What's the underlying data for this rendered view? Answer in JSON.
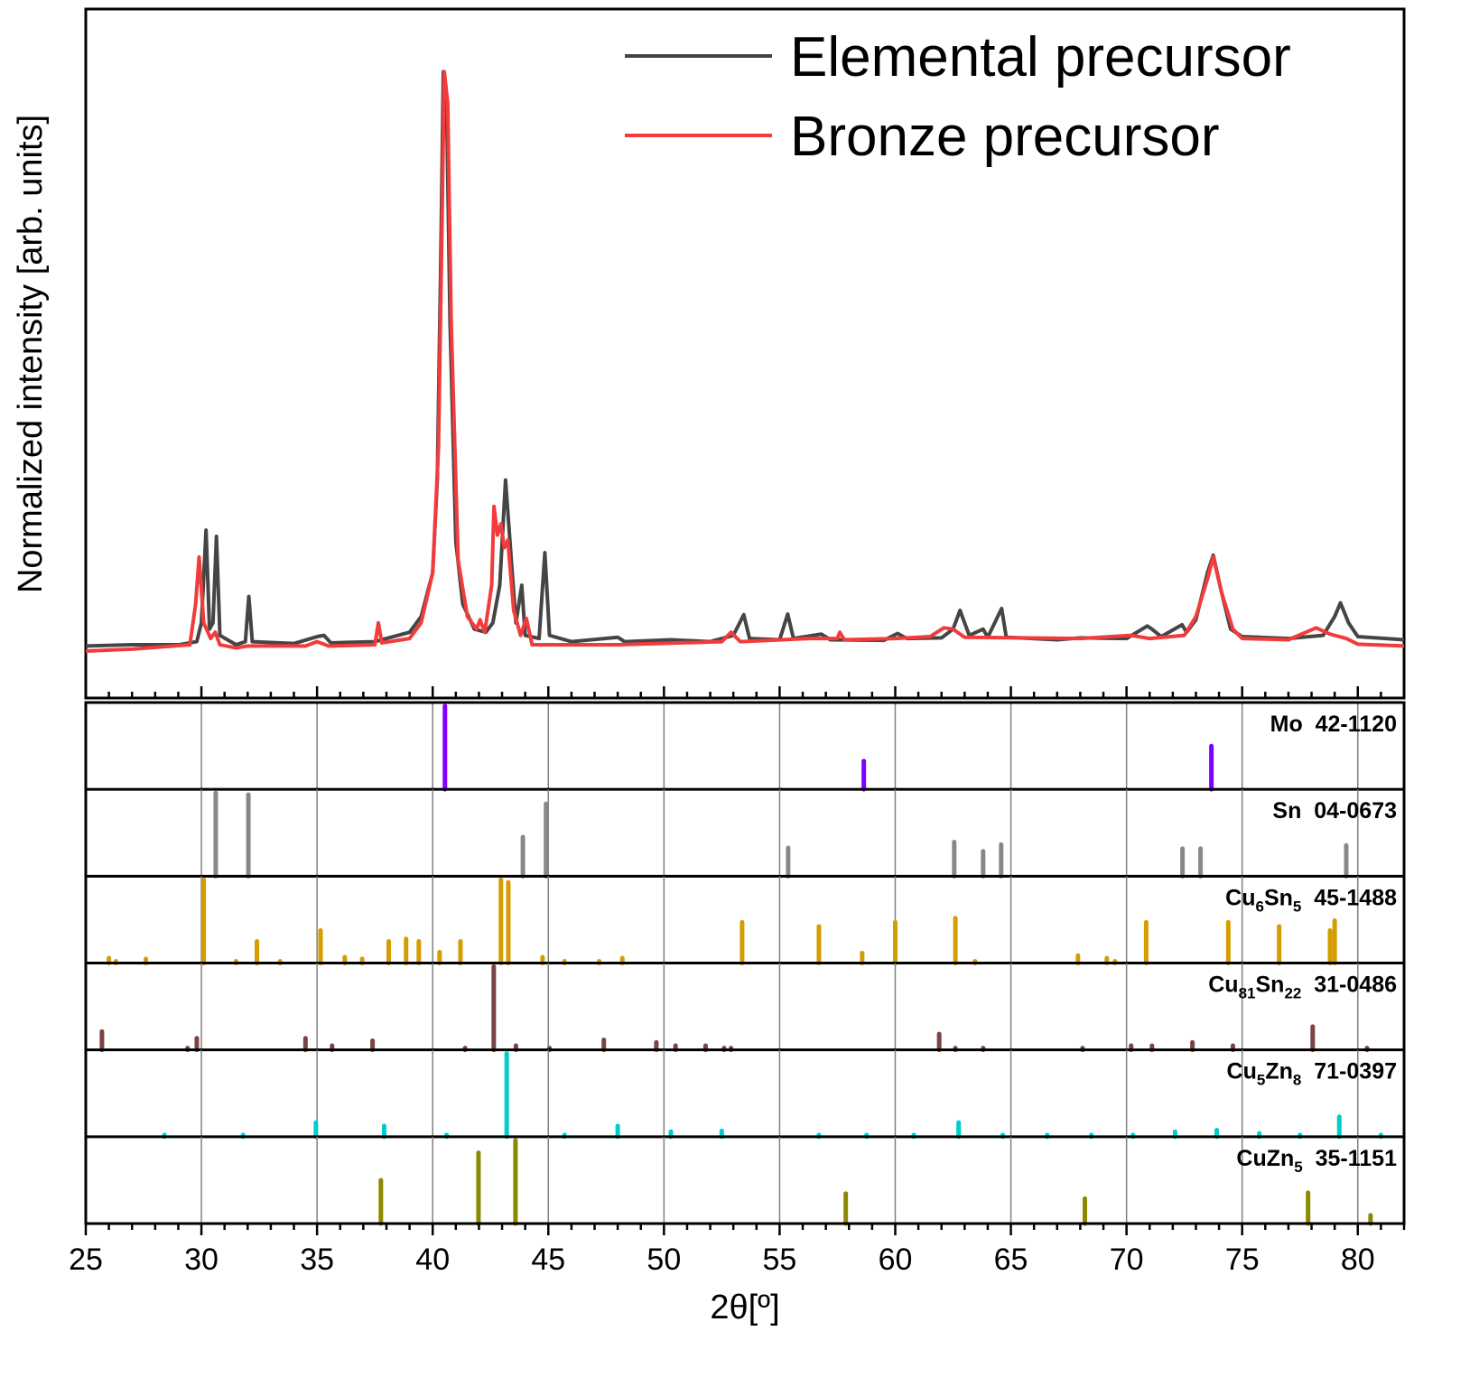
{
  "chart_data": {
    "type": "line",
    "xlabel": "2θ[º]",
    "ylabel": "Normalized intensity [arb. units]",
    "xlim": [
      25,
      82
    ],
    "ylim": [
      0,
      110
    ],
    "x_ticks": [
      25,
      30,
      35,
      40,
      45,
      50,
      55,
      60,
      65,
      70,
      75,
      80
    ],
    "legend_placement": "top-right",
    "series": [
      {
        "name": "Elemental precursor",
        "color": "#454545",
        "points": [
          [
            25,
            8.3
          ],
          [
            27,
            8.5
          ],
          [
            29,
            8.5
          ],
          [
            29.8,
            9
          ],
          [
            30,
            12
          ],
          [
            30.2,
            26.8
          ],
          [
            30.35,
            11
          ],
          [
            30.5,
            12
          ],
          [
            30.65,
            25.8
          ],
          [
            30.8,
            10
          ],
          [
            31.5,
            8.5
          ],
          [
            31.9,
            9
          ],
          [
            32.05,
            16.2
          ],
          [
            32.2,
            9
          ],
          [
            34,
            8.7
          ],
          [
            35,
            9.8
          ],
          [
            35.3,
            10
          ],
          [
            35.6,
            8.8
          ],
          [
            37.5,
            9
          ],
          [
            38,
            9.5
          ],
          [
            39,
            10.5
          ],
          [
            39.5,
            13
          ],
          [
            40,
            20
          ],
          [
            40.2,
            35
          ],
          [
            40.35,
            70
          ],
          [
            40.46,
            100
          ],
          [
            40.6,
            95
          ],
          [
            40.75,
            60
          ],
          [
            41,
            25
          ],
          [
            41.3,
            15
          ],
          [
            41.8,
            11
          ],
          [
            42.3,
            10.5
          ],
          [
            42.6,
            12
          ],
          [
            42.9,
            18
          ],
          [
            43.15,
            34.8
          ],
          [
            43.4,
            22
          ],
          [
            43.6,
            12
          ],
          [
            43.85,
            18
          ],
          [
            44,
            10
          ],
          [
            44.6,
            9.5
          ],
          [
            44.85,
            23.2
          ],
          [
            45.05,
            10
          ],
          [
            46,
            9
          ],
          [
            48,
            9.7
          ],
          [
            48.3,
            9
          ],
          [
            50.3,
            9.3
          ],
          [
            52,
            9
          ],
          [
            53,
            10
          ],
          [
            53.45,
            13.3
          ],
          [
            53.7,
            9.5
          ],
          [
            55,
            9.3
          ],
          [
            55.35,
            13.4
          ],
          [
            55.6,
            9.5
          ],
          [
            56.8,
            10.2
          ],
          [
            57.2,
            9.3
          ],
          [
            59.5,
            9.2
          ],
          [
            60.1,
            10.3
          ],
          [
            60.5,
            9.5
          ],
          [
            62,
            9.6
          ],
          [
            62.5,
            11
          ],
          [
            62.8,
            14
          ],
          [
            63.2,
            10
          ],
          [
            63.8,
            11
          ],
          [
            64,
            9.7
          ],
          [
            64.6,
            14.3
          ],
          [
            64.8,
            9.7
          ],
          [
            67,
            9.3
          ],
          [
            68,
            9.6
          ],
          [
            70,
            9.5
          ],
          [
            70.9,
            11.5
          ],
          [
            71.1,
            11
          ],
          [
            71.5,
            9.8
          ],
          [
            72.4,
            11.7
          ],
          [
            72.6,
            10.5
          ],
          [
            73,
            12.5
          ],
          [
            73.5,
            20
          ],
          [
            73.75,
            22.8
          ],
          [
            74.1,
            17
          ],
          [
            74.5,
            11
          ],
          [
            75,
            9.8
          ],
          [
            77,
            9.5
          ],
          [
            78.5,
            10
          ],
          [
            79,
            13
          ],
          [
            79.25,
            15.2
          ],
          [
            79.6,
            12
          ],
          [
            80,
            9.8
          ],
          [
            82,
            9.3
          ]
        ]
      },
      {
        "name": "Bronze precursor",
        "color": "#f23b3b",
        "points": [
          [
            25,
            7.5
          ],
          [
            27,
            7.8
          ],
          [
            29.5,
            8.5
          ],
          [
            29.75,
            15
          ],
          [
            29.9,
            22.5
          ],
          [
            30.1,
            12
          ],
          [
            30.4,
            9.5
          ],
          [
            30.6,
            10.5
          ],
          [
            30.8,
            8.5
          ],
          [
            31.5,
            8
          ],
          [
            32,
            8.3
          ],
          [
            34.5,
            8.3
          ],
          [
            35,
            9
          ],
          [
            35.5,
            8.3
          ],
          [
            37.5,
            8.5
          ],
          [
            37.65,
            12
          ],
          [
            37.8,
            8.8
          ],
          [
            39,
            9.5
          ],
          [
            39.5,
            12
          ],
          [
            40,
            20
          ],
          [
            40.25,
            40
          ],
          [
            40.4,
            75
          ],
          [
            40.5,
            100
          ],
          [
            40.65,
            95
          ],
          [
            40.8,
            60
          ],
          [
            41.1,
            22
          ],
          [
            41.5,
            13
          ],
          [
            41.9,
            11
          ],
          [
            42.05,
            12.5
          ],
          [
            42.25,
            10.5
          ],
          [
            42.55,
            18
          ],
          [
            42.65,
            30.6
          ],
          [
            42.8,
            26
          ],
          [
            42.95,
            27.8
          ],
          [
            43.1,
            24
          ],
          [
            43.25,
            25.2
          ],
          [
            43.5,
            14
          ],
          [
            43.8,
            10
          ],
          [
            44.05,
            12.7
          ],
          [
            44.3,
            8.5
          ],
          [
            45,
            8.5
          ],
          [
            48,
            8.5
          ],
          [
            52.5,
            9
          ],
          [
            52.9,
            10.5
          ],
          [
            53.3,
            9
          ],
          [
            56.3,
            9.5
          ],
          [
            57.5,
            9.5
          ],
          [
            57.6,
            10.5
          ],
          [
            57.8,
            9.3
          ],
          [
            60,
            9.5
          ],
          [
            61.5,
            9.8
          ],
          [
            62.1,
            11.2
          ],
          [
            62.5,
            11
          ],
          [
            63,
            9.7
          ],
          [
            68,
            9.5
          ],
          [
            70.2,
            10
          ],
          [
            71,
            9.5
          ],
          [
            72.5,
            10
          ],
          [
            73,
            13
          ],
          [
            73.5,
            19
          ],
          [
            73.75,
            22.5
          ],
          [
            74.1,
            17
          ],
          [
            74.6,
            11
          ],
          [
            75,
            9.5
          ],
          [
            77,
            9.3
          ],
          [
            78.2,
            11.2
          ],
          [
            78.8,
            10.2
          ],
          [
            79.5,
            9.5
          ],
          [
            80,
            8.6
          ],
          [
            82,
            8.3
          ]
        ]
      }
    ],
    "reference_patterns": [
      {
        "label_parts": [
          {
            "t": "Mo"
          }
        ],
        "card": "42-1120",
        "color": "#8000ff",
        "sticks": [
          [
            40.53,
            100
          ],
          [
            58.64,
            34
          ],
          [
            73.67,
            52
          ]
        ]
      },
      {
        "label_parts": [
          {
            "t": "Sn"
          }
        ],
        "card": "04-0673",
        "color": "#888888",
        "sticks": [
          [
            30.62,
            100
          ],
          [
            32.03,
            98
          ],
          [
            43.9,
            47
          ],
          [
            44.9,
            87
          ],
          [
            55.37,
            34
          ],
          [
            62.55,
            41
          ],
          [
            63.8,
            30
          ],
          [
            64.58,
            38
          ],
          [
            72.42,
            33
          ],
          [
            73.2,
            33
          ],
          [
            79.5,
            37
          ]
        ]
      },
      {
        "label_parts": [
          {
            "t": "Cu"
          },
          {
            "s": "6"
          },
          {
            "t": "Sn"
          },
          {
            "s": "5"
          }
        ],
        "card": "45-1488",
        "color": "#d49d00",
        "sticks": [
          [
            26.0,
            6
          ],
          [
            26.3,
            2
          ],
          [
            27.6,
            5
          ],
          [
            30.1,
            100
          ],
          [
            31.5,
            2
          ],
          [
            32.4,
            26
          ],
          [
            33.4,
            2
          ],
          [
            35.15,
            39
          ],
          [
            36.2,
            7
          ],
          [
            36.95,
            5
          ],
          [
            38.1,
            26
          ],
          [
            38.85,
            29
          ],
          [
            39.4,
            26
          ],
          [
            40.3,
            13
          ],
          [
            41.2,
            26
          ],
          [
            42.95,
            100
          ],
          [
            43.27,
            97
          ],
          [
            44.75,
            7
          ],
          [
            45.7,
            2
          ],
          [
            47.2,
            2
          ],
          [
            48.2,
            6
          ],
          [
            53.38,
            49
          ],
          [
            56.7,
            44
          ],
          [
            58.57,
            12
          ],
          [
            60.0,
            49
          ],
          [
            62.6,
            54
          ],
          [
            63.45,
            2
          ],
          [
            67.9,
            9
          ],
          [
            69.15,
            6
          ],
          [
            69.5,
            2
          ],
          [
            70.85,
            49
          ],
          [
            74.4,
            49
          ],
          [
            76.6,
            44
          ],
          [
            78.8,
            39
          ],
          [
            79.0,
            51
          ]
        ]
      },
      {
        "label_parts": [
          {
            "t": "Cu"
          },
          {
            "s": "81"
          },
          {
            "t": "Sn"
          },
          {
            "s": "22"
          }
        ],
        "card": "31-0486",
        "color": "#7b4343",
        "sticks": [
          [
            25.7,
            22
          ],
          [
            29.4,
            2
          ],
          [
            29.8,
            14
          ],
          [
            34.5,
            14
          ],
          [
            35.65,
            5
          ],
          [
            37.4,
            11
          ],
          [
            41.4,
            2
          ],
          [
            42.64,
            100
          ],
          [
            43.6,
            5
          ],
          [
            45.05,
            2
          ],
          [
            47.4,
            12
          ],
          [
            49.67,
            9
          ],
          [
            50.5,
            5
          ],
          [
            51.8,
            5
          ],
          [
            52.6,
            2
          ],
          [
            52.9,
            2
          ],
          [
            61.9,
            19
          ],
          [
            62.6,
            2
          ],
          [
            63.8,
            2
          ],
          [
            68.1,
            2
          ],
          [
            70.2,
            5
          ],
          [
            71.1,
            5
          ],
          [
            72.85,
            9
          ],
          [
            74.6,
            5
          ],
          [
            78.05,
            28
          ],
          [
            80.4,
            2
          ]
        ]
      },
      {
        "label_parts": [
          {
            "t": "Cu"
          },
          {
            "s": "5"
          },
          {
            "t": "Zn"
          },
          {
            "s": "8"
          }
        ],
        "card": "71-0397",
        "color": "#00cccc",
        "sticks": [
          [
            28.4,
            2
          ],
          [
            31.8,
            2
          ],
          [
            34.95,
            17
          ],
          [
            37.9,
            13
          ],
          [
            40.6,
            2
          ],
          [
            43.2,
            100
          ],
          [
            45.7,
            2
          ],
          [
            48.0,
            13
          ],
          [
            50.3,
            6
          ],
          [
            52.5,
            7
          ],
          [
            56.7,
            2
          ],
          [
            58.76,
            2
          ],
          [
            60.8,
            2
          ],
          [
            62.74,
            17
          ],
          [
            64.65,
            2
          ],
          [
            66.57,
            2
          ],
          [
            68.48,
            2
          ],
          [
            70.28,
            2
          ],
          [
            72.1,
            6
          ],
          [
            73.9,
            8
          ],
          [
            75.74,
            4
          ],
          [
            77.5,
            2
          ],
          [
            79.2,
            24
          ],
          [
            81.0,
            2
          ]
        ]
      },
      {
        "label_parts": [
          {
            "t": "CuZn"
          },
          {
            "s": "5"
          }
        ],
        "card": "35-1151",
        "color": "#8a8a00",
        "sticks": [
          [
            37.76,
            52
          ],
          [
            41.98,
            85
          ],
          [
            43.58,
            100
          ],
          [
            57.86,
            36
          ],
          [
            68.2,
            30
          ],
          [
            77.85,
            37
          ],
          [
            80.55,
            10
          ]
        ]
      }
    ]
  }
}
